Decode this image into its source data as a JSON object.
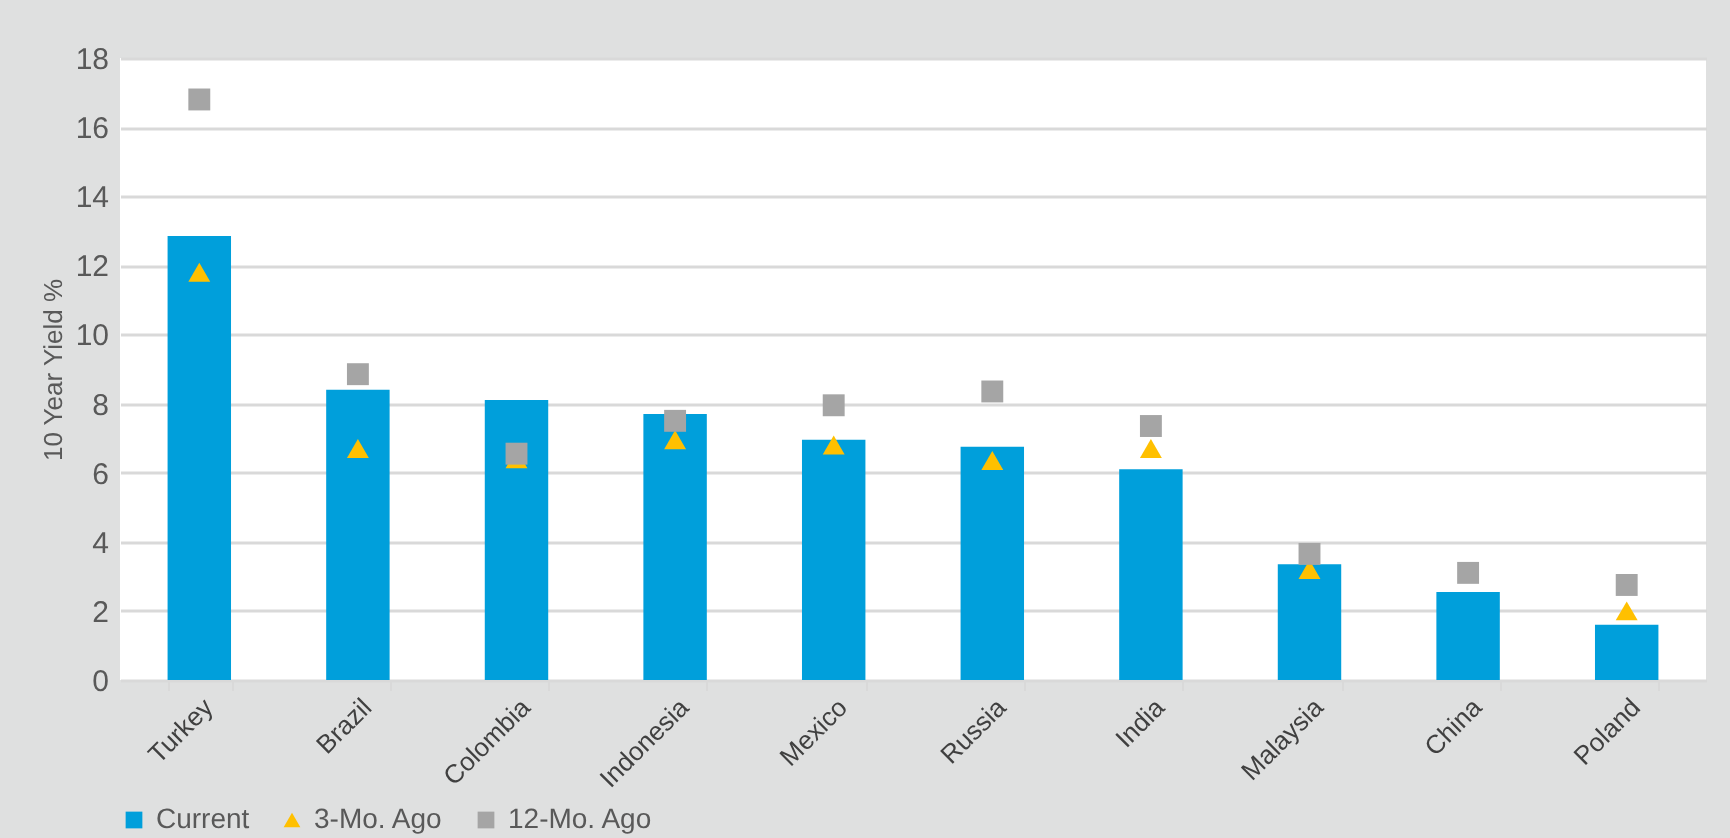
{
  "chart_data": {
    "type": "bar",
    "ylabel": "10 Year Yield %",
    "categories": [
      "Turkey",
      "Brazil",
      "Colombia",
      "Indonesia",
      "Mexico",
      "Russia",
      "India",
      "Malaysia",
      "China",
      "Poland"
    ],
    "series": [
      {
        "name": "Current",
        "color": "#009fdb",
        "values": [
          12.85,
          8.4,
          8.1,
          7.7,
          6.95,
          6.75,
          6.1,
          3.35,
          2.55,
          1.6
        ]
      },
      {
        "name": "3-Mo. Ago",
        "type": "scatter",
        "marker": "triangle",
        "color": "#ffc000",
        "values": [
          11.8,
          6.7,
          6.4,
          6.95,
          6.8,
          6.35,
          6.7,
          3.2,
          null,
          2.0
        ]
      },
      {
        "name": "12-Mo. Ago",
        "type": "scatter",
        "marker": "square",
        "color": "#a5a5a5",
        "values": [
          16.8,
          8.85,
          6.55,
          7.5,
          7.95,
          8.35,
          7.35,
          3.65,
          3.1,
          2.75
        ]
      }
    ],
    "ylim": [
      0,
      18
    ],
    "yticks": [
      0,
      2,
      4,
      6,
      8,
      10,
      12,
      14,
      16,
      18
    ],
    "grid": "y",
    "legend": "bottom"
  }
}
